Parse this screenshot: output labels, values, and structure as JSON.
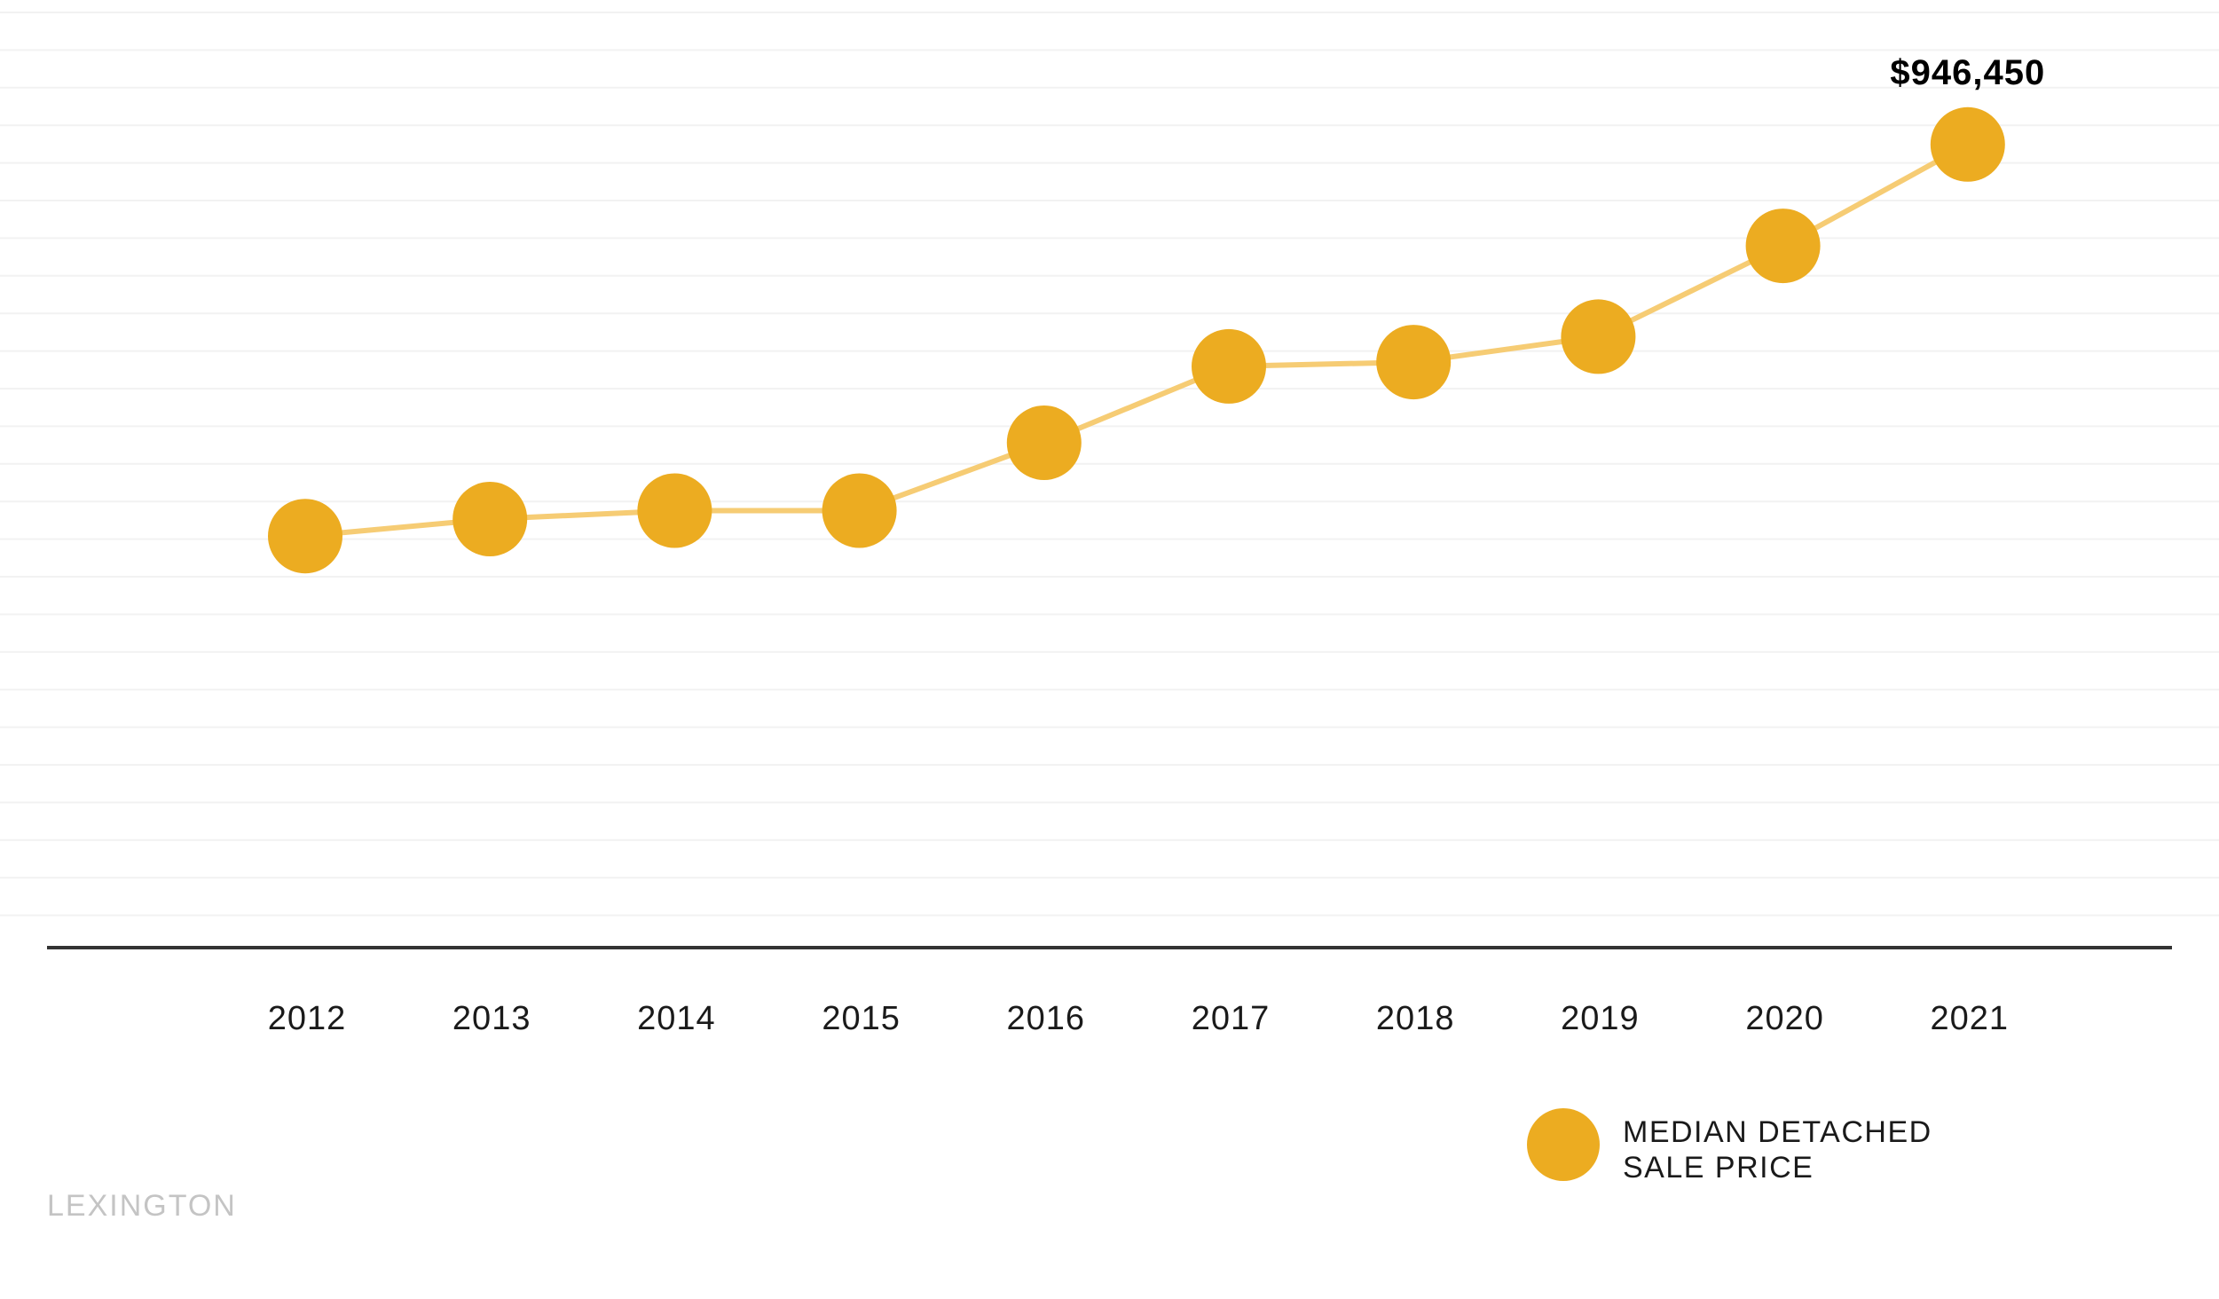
{
  "brand": "LEXINGTON",
  "colors": {
    "marker": "#ECAC21",
    "line": "#F6CC74",
    "axis": "#333333",
    "grid": "#F2F2F2",
    "brand_text": "#C4C4C4"
  },
  "chart_data": {
    "type": "line",
    "categories": [
      "2012",
      "2013",
      "2014",
      "2015",
      "2016",
      "2017",
      "2018",
      "2019",
      "2020",
      "2021"
    ],
    "series": [
      {
        "name": "MEDIAN DETACHED SALE PRICE",
        "values": [
          485000,
          505000,
          515000,
          515000,
          595000,
          685000,
          690000,
          720000,
          827000,
          946450
        ]
      }
    ],
    "ylim": [
      0,
      1100000
    ],
    "annotations": [
      {
        "category": "2021",
        "text": "$946,450"
      }
    ],
    "legend": {
      "position": "bottom-right",
      "lines": [
        "MEDIAN DETACHED",
        "SALE PRICE"
      ]
    },
    "grid": true,
    "title": "",
    "xlabel": "",
    "ylabel": ""
  }
}
